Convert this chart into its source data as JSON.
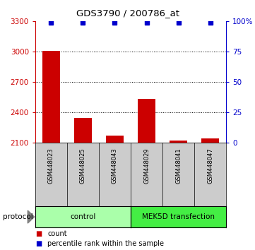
{
  "title": "GDS3790 / 200786_at",
  "samples": [
    "GSM448023",
    "GSM448025",
    "GSM448043",
    "GSM448029",
    "GSM448041",
    "GSM448047"
  ],
  "count_values": [
    3010,
    2340,
    2170,
    2530,
    2120,
    2140
  ],
  "percentile_values": [
    99,
    99,
    99,
    99,
    99,
    99
  ],
  "ylim_left": [
    2100,
    3300
  ],
  "ylim_right": [
    0,
    100
  ],
  "yticks_left": [
    2100,
    2400,
    2700,
    3000,
    3300
  ],
  "yticks_right": [
    0,
    25,
    50,
    75,
    100
  ],
  "ytick_labels_right": [
    "0",
    "25",
    "50",
    "75",
    "100%"
  ],
  "protocol_groups": [
    {
      "label": "control",
      "color": "#aaffaa",
      "n": 3
    },
    {
      "label": "MEK5D transfection",
      "color": "#44ee44",
      "n": 3
    }
  ],
  "bar_color": "#cc0000",
  "dot_color": "#0000cc",
  "axis_color_left": "#cc0000",
  "axis_color_right": "#0000cc",
  "legend_items": [
    {
      "color": "#cc0000",
      "label": "count"
    },
    {
      "color": "#0000cc",
      "label": "percentile rank within the sample"
    }
  ],
  "bar_width": 0.55,
  "sample_box_color": "#cccccc",
  "protocol_label": "protocol",
  "grid_yticks": [
    3000,
    2700,
    2400
  ]
}
